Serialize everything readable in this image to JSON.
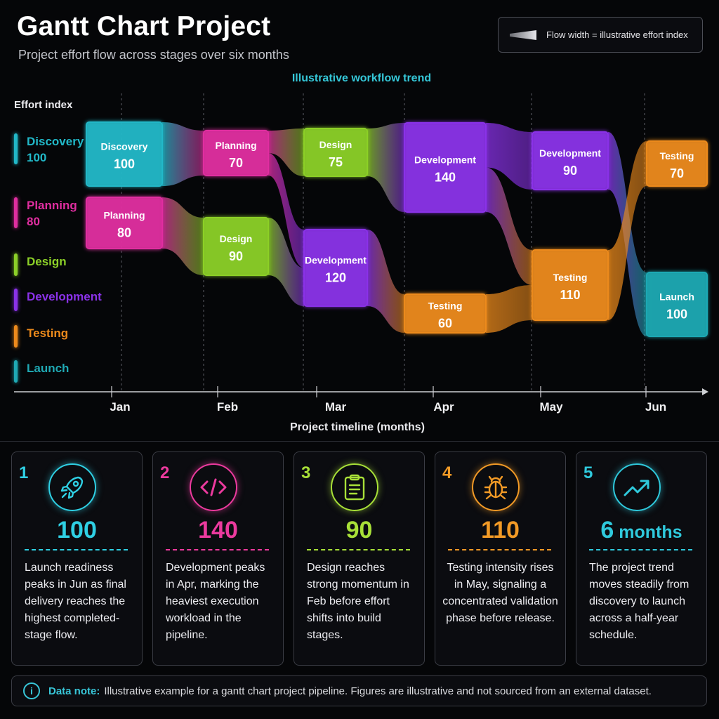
{
  "header": {
    "title": "Gantt Chart Project",
    "subtitle": "Project effort flow across stages over six months",
    "legend_note": "Flow width = illustrative effort index",
    "trend_label": "Illustrative workflow trend"
  },
  "chart_data": {
    "type": "sankey",
    "ylabel": "Effort index",
    "xlabel": "Project timeline (months)",
    "months": [
      "Jan",
      "Feb",
      "Mar",
      "Apr",
      "May",
      "Jun"
    ],
    "stage_colors": {
      "Discovery": "#21b8c8",
      "Planning": "#e02ea0",
      "Design": "#8cd028",
      "Development": "#8a32e8",
      "Testing": "#ec8a1c",
      "Launch": "#1fa9b4"
    },
    "legend": [
      {
        "stage": "Discovery",
        "value": "100"
      },
      {
        "stage": "Planning",
        "value": "80"
      },
      {
        "stage": "Design",
        "value": ""
      },
      {
        "stage": "Development",
        "value": ""
      },
      {
        "stage": "Testing",
        "value": ""
      },
      {
        "stage": "Launch",
        "value": ""
      }
    ],
    "nodes": [
      {
        "id": "n1",
        "month": "Jan",
        "stage": "Discovery",
        "value": 100
      },
      {
        "id": "n2",
        "month": "Jan",
        "stage": "Planning",
        "value": 80
      },
      {
        "id": "n3",
        "month": "Feb",
        "stage": "Planning",
        "value": 70
      },
      {
        "id": "n4",
        "month": "Feb",
        "stage": "Design",
        "value": 90
      },
      {
        "id": "n5",
        "month": "Mar",
        "stage": "Design",
        "value": 75
      },
      {
        "id": "n6",
        "month": "Mar",
        "stage": "Development",
        "value": 120
      },
      {
        "id": "n7",
        "month": "Apr",
        "stage": "Development",
        "value": 140
      },
      {
        "id": "n8",
        "month": "Apr",
        "stage": "Testing",
        "value": 60
      },
      {
        "id": "n9",
        "month": "May",
        "stage": "Development",
        "value": 90
      },
      {
        "id": "n10",
        "month": "May",
        "stage": "Testing",
        "value": 110
      },
      {
        "id": "n11",
        "month": "Jun",
        "stage": "Testing",
        "value": 70
      },
      {
        "id": "n12",
        "month": "Jun",
        "stage": "Launch",
        "value": 100
      }
    ],
    "links": [
      {
        "from": "n1",
        "to": "n3"
      },
      {
        "from": "n2",
        "to": "n4"
      },
      {
        "from": "n3",
        "to": "n5"
      },
      {
        "from": "n3",
        "to": "n6"
      },
      {
        "from": "n4",
        "to": "n6"
      },
      {
        "from": "n5",
        "to": "n7"
      },
      {
        "from": "n6",
        "to": "n8"
      },
      {
        "from": "n7",
        "to": "n9"
      },
      {
        "from": "n7",
        "to": "n10"
      },
      {
        "from": "n8",
        "to": "n10"
      },
      {
        "from": "n9",
        "to": "n12"
      },
      {
        "from": "n10",
        "to": "n11"
      }
    ]
  },
  "cards": [
    {
      "num": "1",
      "icon": "rocket-icon",
      "color": "#2fd0e4",
      "value": "100",
      "unit": "",
      "text": "Launch readiness peaks in Jun as final delivery reaches the highest completed-stage flow.",
      "centered": false
    },
    {
      "num": "2",
      "icon": "code-icon",
      "color": "#ec3a9e",
      "value": "140",
      "unit": "",
      "text": "Development peaks in Apr, marking the heaviest execution workload in the pipeline.",
      "centered": false
    },
    {
      "num": "3",
      "icon": "clipboard-icon",
      "color": "#a8e038",
      "value": "90",
      "unit": "",
      "text": "Design reaches strong momentum in Feb before effort shifts into build stages.",
      "centered": false
    },
    {
      "num": "4",
      "icon": "bug-icon",
      "color": "#f29a26",
      "value": "110",
      "unit": "",
      "text": "Testing intensity rises in May, signaling a concentrated validation phase before release.",
      "centered": true
    },
    {
      "num": "5",
      "icon": "trend-up-icon",
      "color": "#2fc9dc",
      "value": "6",
      "unit": " months",
      "text": "The project trend moves steadily from discovery to launch across a half-year schedule.",
      "centered": false
    }
  ],
  "note": {
    "label": "Data note:",
    "text": "Illustrative example for a gantt chart project pipeline. Figures are illustrative and not sourced from an external dataset."
  }
}
